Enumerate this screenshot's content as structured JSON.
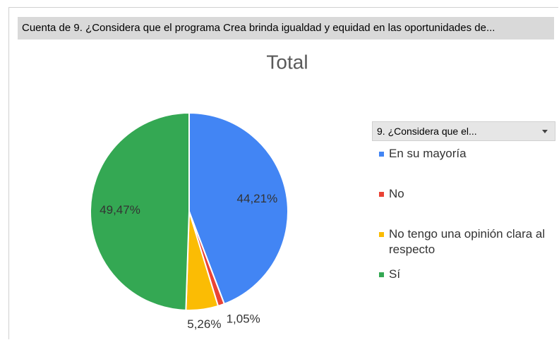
{
  "header": "Cuenta de 9. ¿Considera que el programa Crea brinda igualdad y equidad en las oportunidades de...",
  "chart_data": {
    "type": "pie",
    "title": "Total",
    "legend_title": "9. ¿Considera que el...",
    "categories": [
      "En su mayoría",
      "No",
      "No tengo una opinión clara al respecto",
      "Sí"
    ],
    "values": [
      44.21,
      1.05,
      5.26,
      49.47
    ],
    "value_labels": [
      "44,21%",
      "1,05%",
      "5,26%",
      "49,47%"
    ],
    "colors": [
      "#4285f4",
      "#ea4335",
      "#fbbc04",
      "#34a853"
    ],
    "legend": "right"
  }
}
